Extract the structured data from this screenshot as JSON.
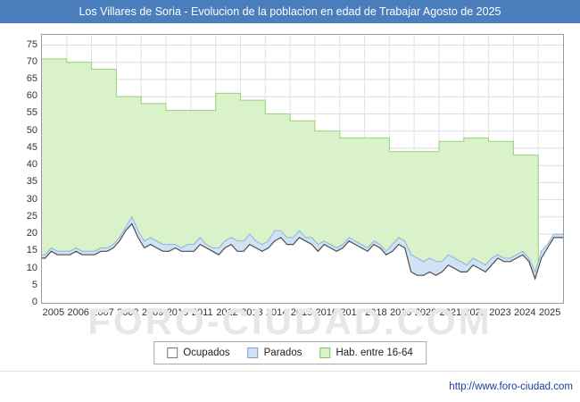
{
  "title": "Los Villares de Soria - Evolucion de la poblacion en edad de Trabajar Agosto de 2025",
  "watermark": "FORO-CIUDAD.COM",
  "footer": {
    "url": "http://www.foro-ciudad.com"
  },
  "legend": [
    {
      "label": "Ocupados",
      "color": "#ffffff",
      "edge": "#777777"
    },
    {
      "label": "Parados",
      "color": "#cfe3f5",
      "edge": "#7aa0c8"
    },
    {
      "label": "Hab. entre 16-64",
      "color": "#d9f2c9",
      "edge": "#85c45f"
    }
  ],
  "chart_data": {
    "type": "area",
    "title": "Los Villares de Soria - Evolucion de la poblacion en edad de Trabajar Agosto de 2025",
    "xlabel": "",
    "ylabel": "",
    "ylim": [
      0,
      75
    ],
    "ytick_step": 5,
    "grid": true,
    "legend_position": "bottom",
    "x_years": [
      2005,
      2006,
      2007,
      2008,
      2009,
      2010,
      2011,
      2012,
      2013,
      2014,
      2015,
      2016,
      2017,
      2018,
      2019,
      2020,
      2021,
      2022,
      2023,
      2024,
      2025
    ],
    "series": [
      {
        "name": "Hab. entre 16-64",
        "style": "step-area-yearly",
        "color": "#d9f2c9",
        "edge": "#9ad276",
        "years": [
          2005,
          2006,
          2007,
          2008,
          2009,
          2010,
          2011,
          2012,
          2013,
          2014,
          2015,
          2016,
          2017,
          2018,
          2019,
          2020,
          2021,
          2022,
          2023,
          2024
        ],
        "values": [
          71,
          70,
          68,
          60,
          58,
          56,
          56,
          61,
          59,
          55,
          53,
          50,
          48,
          48,
          44,
          44,
          47,
          48,
          47,
          43
        ]
      },
      {
        "name": "Parados",
        "style": "area-stacked-on-ocupados",
        "color": "#cfe3f5",
        "edge": "#8fb2d9",
        "resolution": "quarterly 2005Q1 - 2025Q3",
        "values": [
          1,
          1,
          1,
          1,
          1,
          1,
          1,
          1,
          1,
          1,
          1,
          1,
          1,
          1,
          2,
          2,
          2,
          2,
          2,
          2,
          2,
          1,
          1,
          2,
          2,
          2,
          1,
          1,
          2,
          2,
          2,
          3,
          3,
          3,
          2,
          2,
          2,
          3,
          2,
          2,
          2,
          2,
          1,
          2,
          2,
          1,
          1,
          1,
          1,
          1,
          1,
          1,
          1,
          1,
          1,
          1,
          2,
          2,
          2,
          5,
          5,
          4,
          4,
          4,
          3,
          3,
          3,
          3,
          2,
          2,
          2,
          2,
          2,
          1,
          1,
          1,
          1,
          1,
          1,
          2,
          2,
          1,
          1
        ]
      },
      {
        "name": "Ocupados",
        "style": "line-with-white-area",
        "color": "#ffffff",
        "edge": "#4d4d4d",
        "resolution": "quarterly 2005Q1 - 2025Q3",
        "values": [
          13,
          15,
          14,
          14,
          14,
          15,
          14,
          14,
          14,
          15,
          15,
          16,
          18,
          21,
          23,
          19,
          16,
          17,
          16,
          15,
          15,
          16,
          15,
          15,
          15,
          17,
          16,
          15,
          14,
          16,
          17,
          15,
          15,
          17,
          16,
          15,
          16,
          18,
          19,
          17,
          17,
          19,
          18,
          17,
          15,
          17,
          16,
          15,
          16,
          18,
          17,
          16,
          15,
          17,
          16,
          14,
          15,
          17,
          16,
          9,
          8,
          8,
          9,
          8,
          9,
          11,
          10,
          9,
          9,
          11,
          10,
          9,
          11,
          13,
          12,
          12,
          13,
          14,
          12,
          7,
          13,
          16,
          19
        ]
      }
    ]
  }
}
